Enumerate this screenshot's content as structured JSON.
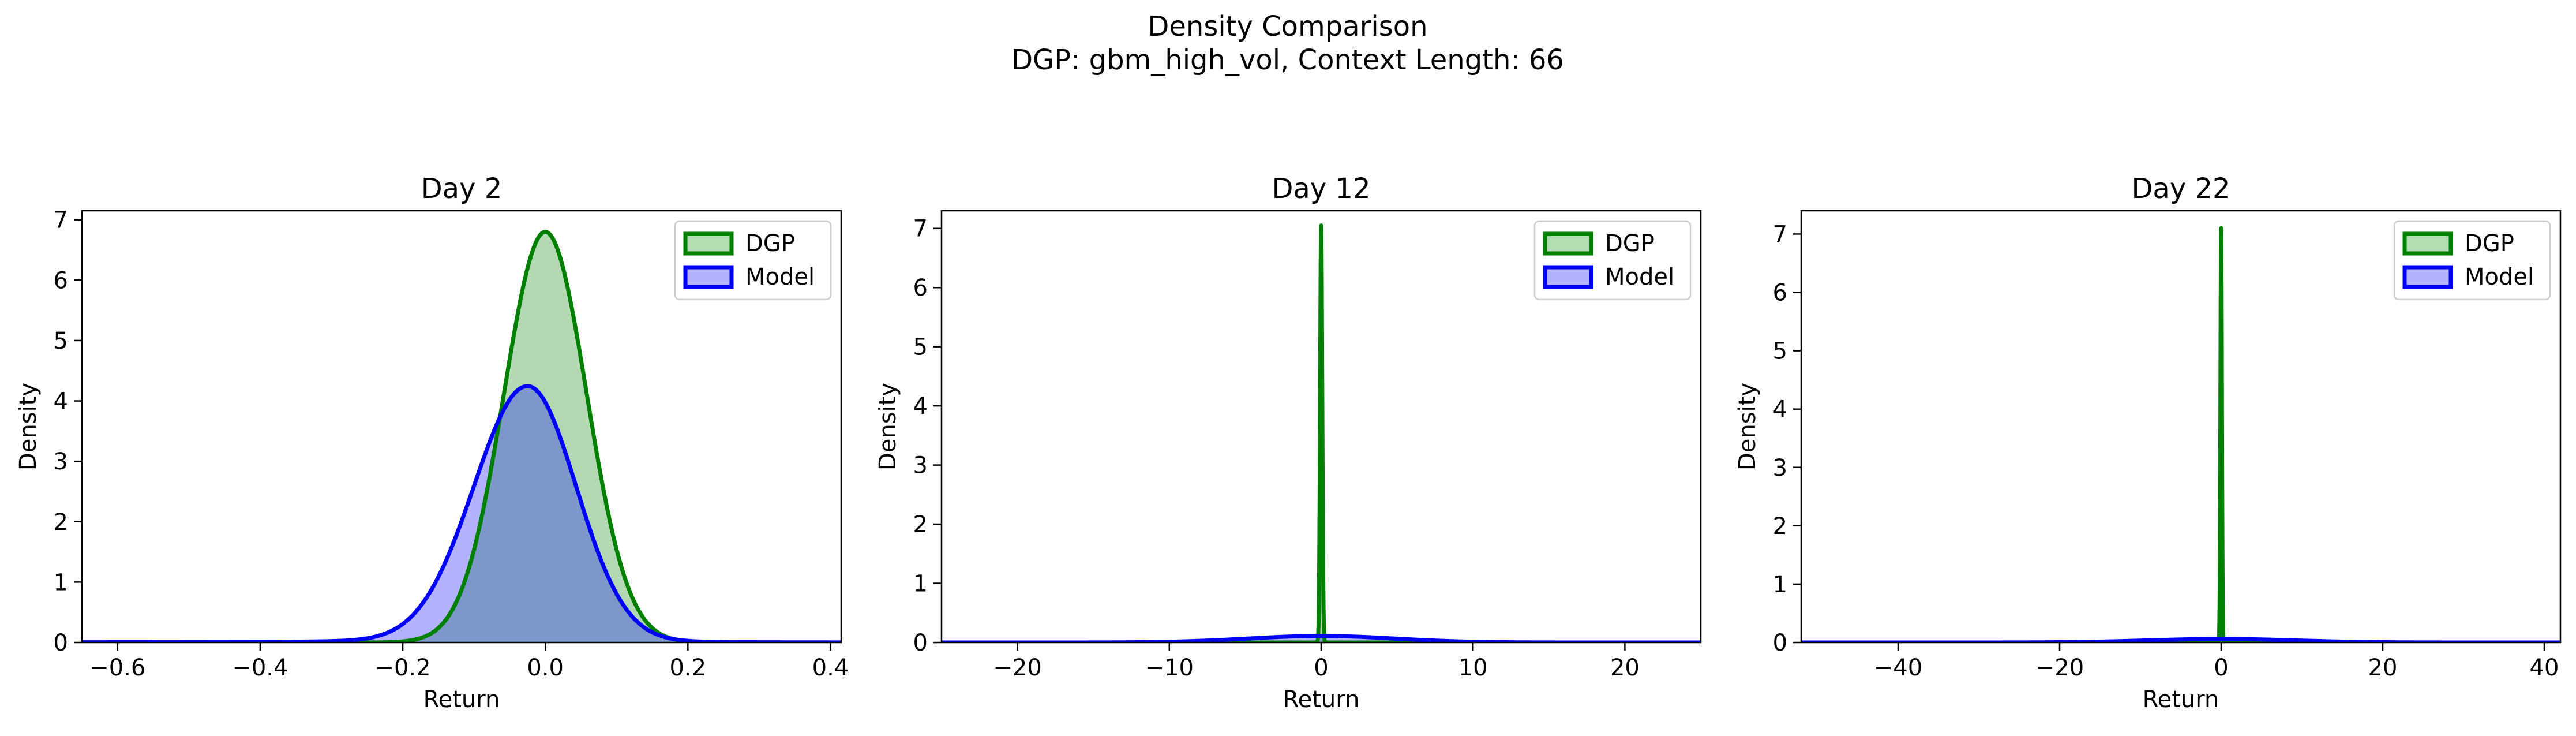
{
  "figure": {
    "title": "Density Comparison",
    "subtitle": "DGP: gbm_high_vol, Context Length: 66"
  },
  "colors": {
    "dgp_line": "#008000",
    "dgp_fill": "#b3deb3",
    "model_line": "#0000ff",
    "model_fill": "#b3b3ff",
    "overlap_fill": "#7f9ccc",
    "axes": "#000000"
  },
  "chart_data": [
    {
      "type": "area",
      "title": "Day 2",
      "xlabel": "Return",
      "ylabel": "Density",
      "xlim": [
        -0.65,
        0.415
      ],
      "ylim": [
        0,
        7.15
      ],
      "xticks": [
        -0.6,
        -0.4,
        -0.2,
        0.0,
        0.2,
        0.4
      ],
      "xtick_labels": [
        "−0.6",
        "−0.4",
        "−0.2",
        "0.0",
        "0.2",
        "0.4"
      ],
      "yticks": [
        0,
        1,
        2,
        3,
        4,
        5,
        6,
        7
      ],
      "ytick_labels": [
        "0",
        "1",
        "2",
        "3",
        "4",
        "5",
        "6",
        "7"
      ],
      "legend": "top-right",
      "series": [
        {
          "name": "DGP",
          "peak_x": 0.0,
          "peak_y": 6.8,
          "x": [
            -0.15,
            -0.1,
            -0.05,
            0.0,
            0.05,
            0.1,
            0.15
          ],
          "y": [
            0.07,
            1.07,
            4.43,
            6.8,
            4.43,
            1.07,
            0.07
          ]
        },
        {
          "name": "Model",
          "peak_x": -0.025,
          "peak_y": 4.42,
          "x": [
            -0.65,
            -0.4,
            -0.2,
            -0.1,
            -0.025,
            0.05,
            0.1,
            0.2,
            0.415
          ],
          "y": [
            0.01,
            0.06,
            0.46,
            2.55,
            4.42,
            2.55,
            1.12,
            0.26,
            0.01
          ]
        }
      ]
    },
    {
      "type": "area",
      "title": "Day 12",
      "xlabel": "Return",
      "ylabel": "Density",
      "xlim": [
        -25,
        25
      ],
      "ylim": [
        0,
        7.3
      ],
      "xticks": [
        -20,
        -10,
        0,
        10,
        20
      ],
      "xtick_labels": [
        "−20",
        "−10",
        "0",
        "10",
        "20"
      ],
      "yticks": [
        0,
        1,
        2,
        3,
        4,
        5,
        6,
        7
      ],
      "ytick_labels": [
        "0",
        "1",
        "2",
        "3",
        "4",
        "5",
        "6",
        "7"
      ],
      "legend": "top-right",
      "series": [
        {
          "name": "DGP",
          "peak_x": 0.0,
          "peak_y": 7.05,
          "x": [
            -0.3,
            -0.1,
            0.0,
            0.1,
            0.3
          ],
          "y": [
            0,
            3.0,
            7.05,
            3.0,
            0
          ]
        },
        {
          "name": "Model",
          "peak_x": 0.0,
          "peak_y": 0.11,
          "x": [
            -25,
            -10,
            -5,
            0,
            5,
            10,
            25
          ],
          "y": [
            0.0,
            0.02,
            0.07,
            0.11,
            0.07,
            0.02,
            0.0
          ]
        }
      ]
    },
    {
      "type": "area",
      "title": "Day 22",
      "xlabel": "Return",
      "ylabel": "Density",
      "xlim": [
        -52,
        42
      ],
      "ylim": [
        0,
        7.4
      ],
      "xticks": [
        -40,
        -20,
        0,
        20,
        40
      ],
      "xtick_labels": [
        "−40",
        "−20",
        "0",
        "20",
        "40"
      ],
      "yticks": [
        0,
        1,
        2,
        3,
        4,
        5,
        6,
        7
      ],
      "ytick_labels": [
        "0",
        "1",
        "2",
        "3",
        "4",
        "5",
        "6",
        "7"
      ],
      "legend": "top-right",
      "series": [
        {
          "name": "DGP",
          "peak_x": 0.0,
          "peak_y": 7.1,
          "x": [
            -0.4,
            -0.15,
            0.0,
            0.15,
            0.4
          ],
          "y": [
            0,
            3.0,
            7.1,
            3.0,
            0
          ]
        },
        {
          "name": "Model",
          "peak_x": 0.0,
          "peak_y": 0.06,
          "x": [
            -52,
            -20,
            -10,
            0,
            10,
            20,
            42
          ],
          "y": [
            0.0,
            0.01,
            0.04,
            0.06,
            0.04,
            0.01,
            0.0
          ]
        }
      ]
    }
  ]
}
